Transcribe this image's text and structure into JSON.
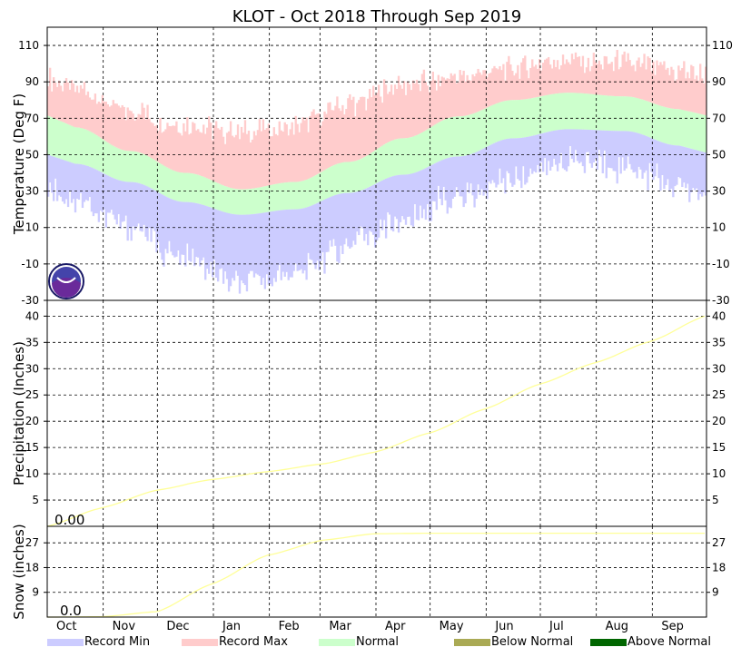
{
  "colors": {
    "record_min": "#ccccff",
    "record_max": "#ffcccc",
    "normal": "#ccffcc",
    "below_normal": "#aaaa55",
    "above_normal": "#006600",
    "cumulative_line": "#ffff99"
  },
  "icons": {
    "logo": "noaa-logo-icon"
  },
  "chart_data": {
    "title": "KLOT - Oct 2018 Through Sep 2019",
    "months": [
      "Oct",
      "Nov",
      "Dec",
      "Jan",
      "Feb",
      "Mar",
      "Apr",
      "May",
      "Jun",
      "Jul",
      "Aug",
      "Sep"
    ],
    "legend": [
      "Record Min",
      "Record Max",
      "Normal",
      "Below Normal",
      "Above Normal"
    ],
    "panels": [
      {
        "id": "temperature",
        "type": "area",
        "ylabel": "Temperature (Deg F)",
        "ylim": [
          -30,
          120
        ],
        "yticks": [
          110,
          90,
          70,
          50,
          30,
          10,
          -10,
          -30
        ],
        "grid": true,
        "normal_high_monthly": [
          65,
          52,
          40,
          31,
          35,
          46,
          59,
          71,
          80,
          84,
          82,
          75
        ],
        "normal_low_monthly": [
          45,
          35,
          24,
          17,
          20,
          29,
          39,
          49,
          59,
          64,
          63,
          55
        ],
        "record_max_monthly": [
          86,
          74,
          66,
          62,
          66,
          78,
          88,
          92,
          98,
          102,
          100,
          96
        ],
        "record_min_monthly": [
          25,
          10,
          -8,
          -22,
          -15,
          0,
          14,
          27,
          38,
          47,
          44,
          32
        ]
      },
      {
        "id": "precipitation",
        "type": "line",
        "ylabel": "Precipitation (Inches)",
        "ylim": [
          0,
          43
        ],
        "yticks": [
          40,
          35,
          30,
          25,
          20,
          15,
          10,
          5
        ],
        "grid": true,
        "value_label": "0.00",
        "cumulative_normal": {
          "days": [
            0,
            30,
            61,
            91,
            122,
            153,
            181,
            212,
            242,
            273,
            303,
            334,
            365
          ],
          "values": [
            0,
            3.5,
            6.9,
            8.9,
            10.4,
            11.9,
            14.1,
            17.8,
            22.3,
            27.1,
            31.1,
            35.2,
            40.1
          ]
        }
      },
      {
        "id": "snow",
        "type": "line",
        "ylabel": "Snow (inches)",
        "ylim": [
          0,
          33
        ],
        "yticks": [
          27,
          18,
          9
        ],
        "grid": true,
        "value_label": "0.0",
        "cumulative_normal": {
          "days": [
            0,
            30,
            61,
            91,
            122,
            153,
            181,
            212,
            242,
            273,
            303,
            334,
            365
          ],
          "values": [
            0,
            0.1,
            2,
            12,
            22.5,
            28,
            30.3,
            30.5,
            30.5,
            30.5,
            30.5,
            30.5,
            30.5
          ]
        }
      }
    ]
  }
}
